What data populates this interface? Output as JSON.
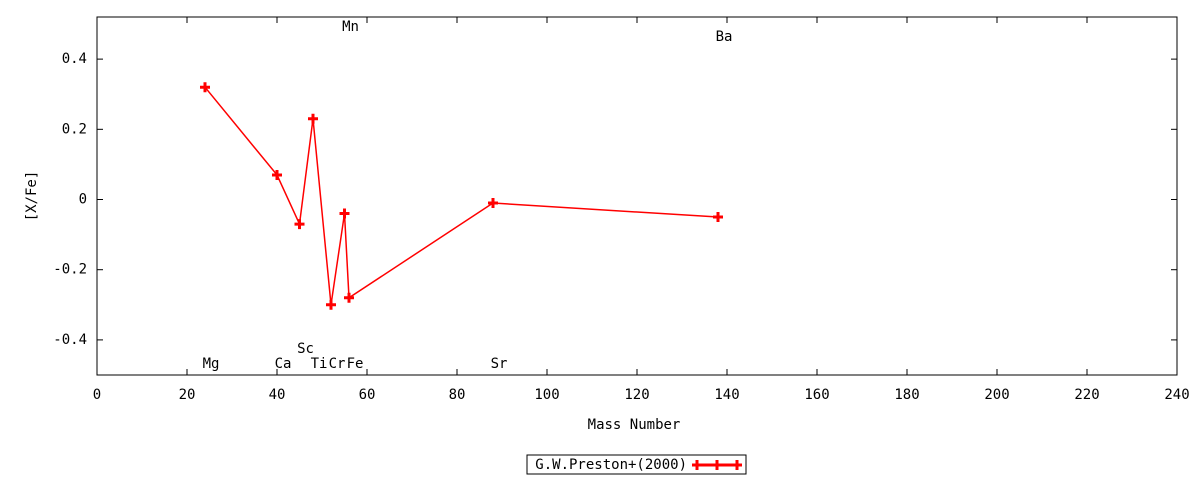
{
  "chart_data": {
    "type": "line",
    "xlabel": "Mass Number",
    "ylabel": "[X/Fe]",
    "x": [
      24,
      40,
      45,
      48,
      52,
      55,
      56,
      88,
      138
    ],
    "point_labels": [
      "Mg",
      "Ca",
      "Sc",
      "Ti",
      "Cr",
      "Mn",
      "Fe",
      "Sr",
      "Ba"
    ],
    "series": [
      {
        "name": "G.W.Preston+(2000)",
        "color": "#ff0000",
        "values": [
          0.32,
          0.07,
          -0.07,
          0.23,
          -0.3,
          -0.04,
          -0.28,
          -0.01,
          -0.05
        ]
      }
    ],
    "xlim": [
      0,
      240
    ],
    "xticks": [
      0,
      20,
      40,
      60,
      80,
      100,
      120,
      140,
      160,
      180,
      200,
      220,
      240
    ],
    "ylim": [
      -0.5,
      0.52
    ],
    "yticks": [
      -0.4,
      -0.2,
      0,
      0.2,
      0.4
    ],
    "legend": "bottom"
  }
}
